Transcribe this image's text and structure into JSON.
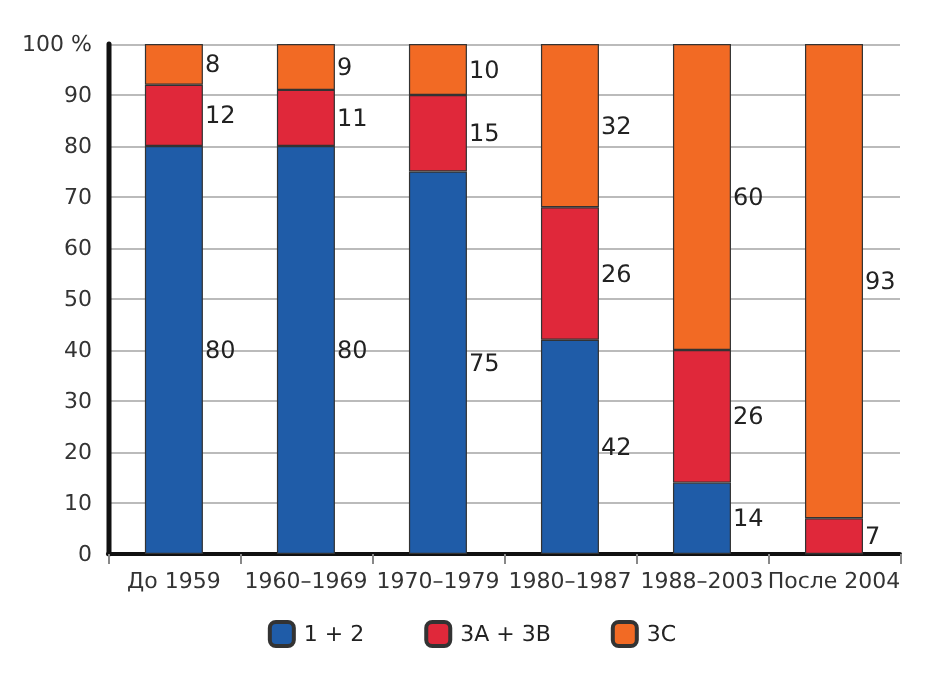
{
  "chart_data": {
    "type": "bar",
    "stacked": true,
    "categories": [
      "До 1959",
      "1960–1969",
      "1970–1979",
      "1980–1987",
      "1988–2003",
      "После 2004"
    ],
    "series": [
      {
        "name": "1 + 2",
        "color": "#1f5ca8",
        "values": [
          80,
          80,
          75,
          42,
          14,
          0
        ],
        "value_labels": [
          "80",
          "80",
          "75",
          "42",
          "14",
          null
        ]
      },
      {
        "name": "3A + 3B",
        "color": "#e0283a",
        "values": [
          12,
          11,
          15,
          26,
          26,
          7
        ],
        "value_labels": [
          "12",
          "11",
          "15",
          "26",
          "26",
          "7"
        ]
      },
      {
        "name": "3C",
        "color": "#f26a24",
        "values": [
          8,
          9,
          10,
          32,
          60,
          93
        ],
        "value_labels": [
          "8",
          "9",
          "10",
          "32",
          "60",
          "93"
        ]
      }
    ],
    "ylim": [
      0,
      100
    ],
    "yticks": [
      0,
      10,
      20,
      30,
      40,
      50,
      60,
      70,
      80,
      90,
      {
        "value": 100,
        "label": "100 %"
      }
    ],
    "grid": "y",
    "legend": "bottom"
  }
}
